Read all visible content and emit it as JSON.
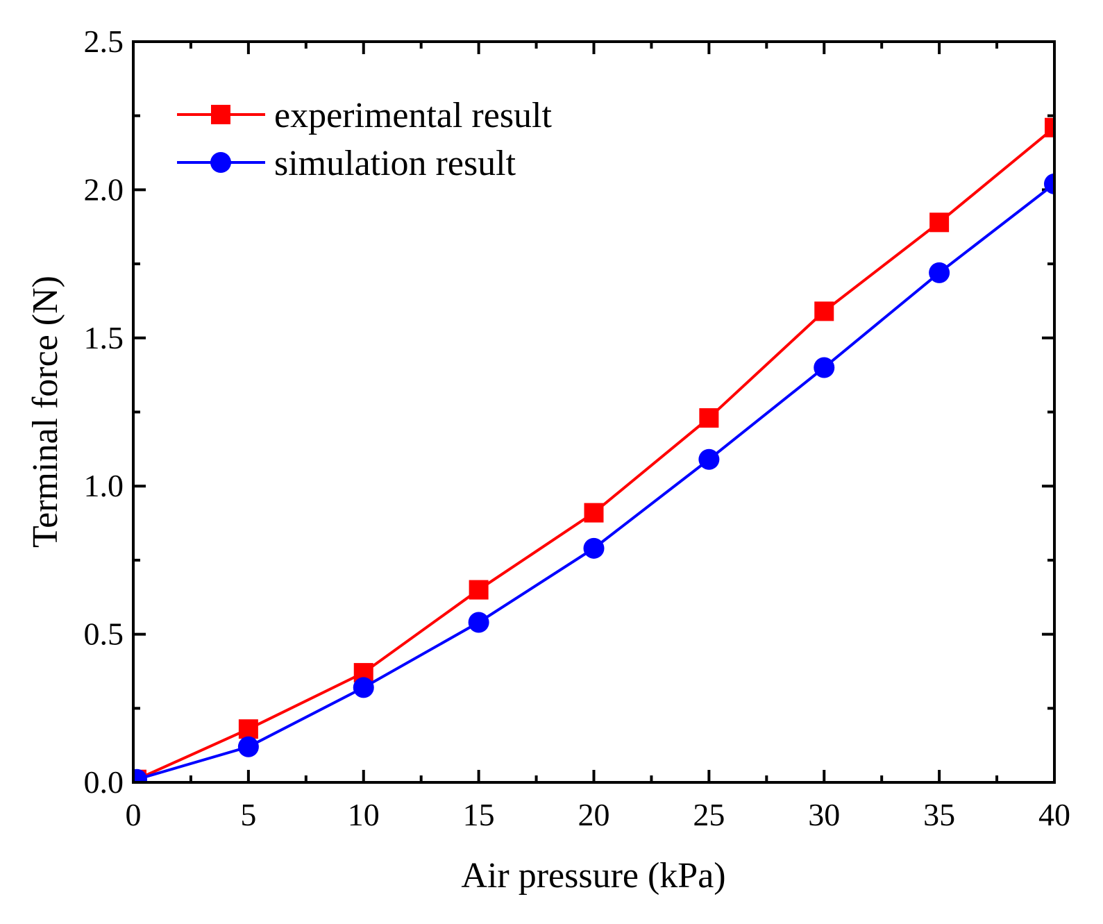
{
  "chart_data": {
    "type": "line",
    "xlabel": "Air pressure (kPa)",
    "ylabel": "Terminal force (N)",
    "xlim": [
      0,
      40
    ],
    "ylim": [
      0,
      2.5
    ],
    "xticks": [
      0,
      5,
      10,
      15,
      20,
      25,
      30,
      35,
      40
    ],
    "xtick_labels": [
      "0",
      "5",
      "10",
      "15",
      "20",
      "25",
      "30",
      "35",
      "40"
    ],
    "yticks": [
      0,
      0.5,
      1.0,
      1.5,
      2.0,
      2.5
    ],
    "ytick_labels": [
      "0.0",
      "0.5",
      "1.0",
      "1.5",
      "2.0",
      "2.5"
    ],
    "grid": false,
    "legend_position": "top-left",
    "x": [
      0,
      5,
      10,
      15,
      20,
      25,
      30,
      35,
      40
    ],
    "series": [
      {
        "name": "experimental result",
        "color": "#ff0000",
        "marker": "square",
        "values": [
          0.01,
          0.18,
          0.37,
          0.65,
          0.91,
          1.23,
          1.59,
          1.89,
          2.21
        ]
      },
      {
        "name": "simulation result",
        "color": "#0000ff",
        "marker": "circle",
        "values": [
          0.01,
          0.12,
          0.32,
          0.54,
          0.79,
          1.09,
          1.4,
          1.72,
          2.02
        ]
      }
    ]
  }
}
